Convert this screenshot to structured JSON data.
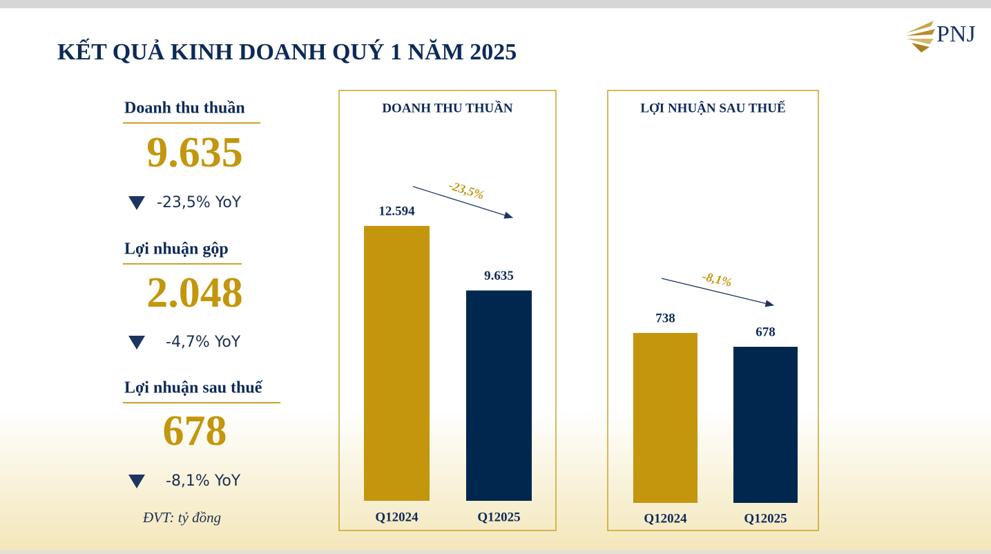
{
  "title": "KẾT QUẢ KINH DOANH QUÝ 1 NĂM 2025",
  "logo": "PNJ",
  "kpis": [
    {
      "label": "Doanh thu thuần",
      "value": "9.635",
      "change": "-23,5% YoY"
    },
    {
      "label": "Lợi nhuận gộp",
      "value": "2.048",
      "change": "-4,7% YoY"
    },
    {
      "label": "Lợi nhuận sau thuế",
      "value": "678",
      "change": "-8,1% YoY"
    }
  ],
  "unit_note": "ĐVT: tỷ đồng",
  "chart_data": [
    {
      "type": "bar",
      "title": "DOANH THU THUẦN",
      "categories": [
        "Q12024",
        "Q12025"
      ],
      "values": [
        12594,
        9635
      ],
      "value_labels": [
        "12.594",
        "9.635"
      ],
      "colors": [
        "#c3960d",
        "#00284e"
      ],
      "annotation": "-23,5%"
    },
    {
      "type": "bar",
      "title": "LỢI NHUẬN SAU THUẾ",
      "categories": [
        "Q12024",
        "Q12025"
      ],
      "values": [
        738,
        678
      ],
      "colors": [
        "#c3960d",
        "#00284e"
      ],
      "annotation": "-8,1%"
    }
  ]
}
